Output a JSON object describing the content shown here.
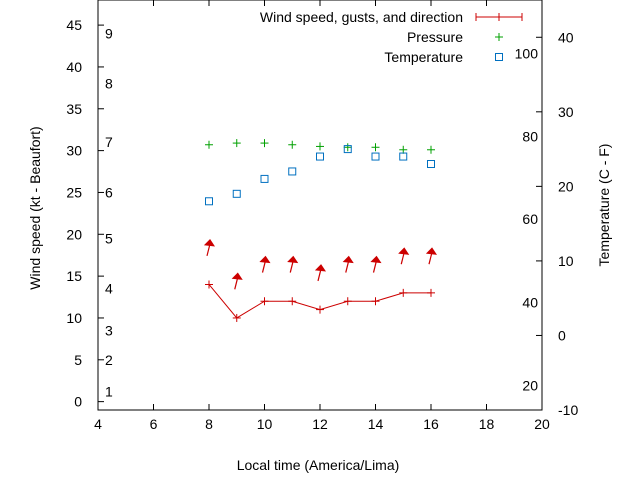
{
  "chart_data": {
    "type": "line",
    "title": "",
    "xlabel": "Local time (America/Lima)",
    "ylabel": "Wind speed (kt - Beaufort)",
    "y2label": "Temperature (C - F)",
    "xlim": [
      4,
      20
    ],
    "ylim": [
      -1,
      48
    ],
    "y2lim": [
      -10,
      45
    ],
    "x_ticks": [
      4,
      6,
      8,
      10,
      12,
      14,
      16,
      18,
      20
    ],
    "y_ticks": [
      0,
      5,
      10,
      15,
      20,
      25,
      30,
      35,
      40,
      45
    ],
    "y2_ticks": [
      -10,
      0,
      10,
      20,
      30,
      40
    ],
    "beaufort_labels": [
      {
        "label": "1",
        "y": 1.2
      },
      {
        "label": "2",
        "y": 5
      },
      {
        "label": "3",
        "y": 8.5
      },
      {
        "label": "4",
        "y": 13.5
      },
      {
        "label": "5",
        "y": 19.5
      },
      {
        "label": "6",
        "y": 25
      },
      {
        "label": "7",
        "y": 31
      },
      {
        "label": "8",
        "y": 38
      },
      {
        "label": "9",
        "y": 44
      }
    ],
    "fahrenheit_labels": [
      {
        "label": "20",
        "y2": -6.7
      },
      {
        "label": "40",
        "y2": 4.4
      },
      {
        "label": "60",
        "y2": 15.6
      },
      {
        "label": "80",
        "y2": 26.7
      },
      {
        "label": "100",
        "y2": 37.8
      }
    ],
    "legend": [
      {
        "name": "Wind speed, gusts, and direction",
        "color": "#cc0000"
      },
      {
        "name": "Pressure",
        "color": "#00a000"
      },
      {
        "name": "Temperature",
        "color": "#0070c0"
      }
    ],
    "series": [
      {
        "name": "Wind speed",
        "axis": "y",
        "x": [
          8,
          9,
          10,
          11,
          12,
          13,
          14,
          15,
          16
        ],
        "values": [
          14,
          10,
          12,
          12,
          11,
          12,
          12,
          13,
          13
        ]
      },
      {
        "name": "Gusts (direction arrows)",
        "axis": "y",
        "x": [
          8,
          9,
          10,
          11,
          12,
          13,
          14,
          15,
          16
        ],
        "values": [
          18.5,
          14.5,
          16.5,
          16.5,
          15.5,
          16.5,
          16.5,
          17.5,
          17.5
        ]
      },
      {
        "name": "Pressure",
        "axis": "y",
        "x": [
          8,
          9,
          10,
          11,
          12,
          13,
          14,
          15,
          16
        ],
        "values": [
          30.7,
          30.9,
          30.9,
          30.7,
          30.5,
          30.4,
          30.4,
          30.1,
          30.1
        ]
      },
      {
        "name": "Temperature",
        "axis": "y2",
        "x": [
          8,
          9,
          10,
          11,
          12,
          13,
          14,
          15,
          16
        ],
        "values": [
          18,
          19,
          21,
          22,
          24,
          25,
          24,
          24,
          23
        ]
      }
    ],
    "colors": {
      "wind": "#cc0000",
      "pressure": "#00a000",
      "temperature": "#0070c0",
      "axis": "#000000"
    }
  }
}
